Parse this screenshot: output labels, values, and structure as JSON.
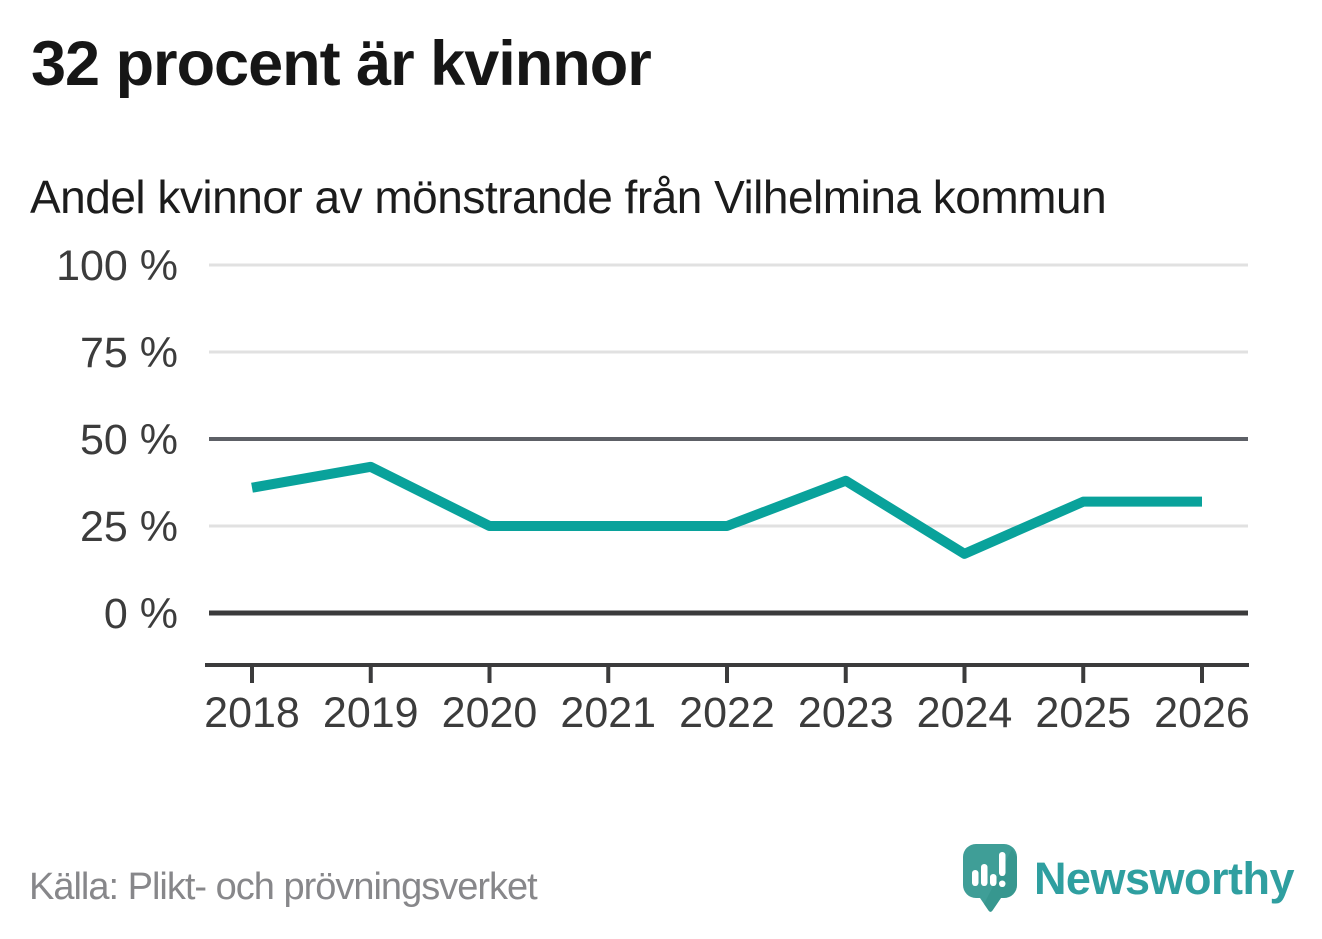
{
  "header": {
    "title": "32 procent är kvinnor",
    "subtitle": "Andel kvinnor av mönstrande från Vilhelmina kommun"
  },
  "footer": {
    "source": "Källa: Plikt- och prövningsverket",
    "brand": "Newsworthy"
  },
  "colors": {
    "line": "#09a29b",
    "grid_light": "#e1e1e1",
    "grid_mid": "#5d6066",
    "axis_dark": "#3b3b3c",
    "tick_label": "#3c3c3c",
    "logo_bubble": "#3f9e97",
    "logo_bubble_shade": "#2f8d86",
    "logo_glyph": "#ffffff",
    "brand_text": "#2f9fa0"
  },
  "chart_data": {
    "type": "line",
    "title": "32 procent är kvinnor",
    "subtitle": "Andel kvinnor av mönstrande från Vilhelmina kommun",
    "categories": [
      "2018",
      "2019",
      "2020",
      "2021",
      "2022",
      "2023",
      "2024",
      "2025",
      "2026"
    ],
    "series": [
      {
        "name": "Andel kvinnor av mönstrande",
        "values": [
          36,
          42,
          25,
          25,
          25,
          38,
          17,
          32,
          32
        ]
      }
    ],
    "unit": "%",
    "ylim": [
      0,
      100
    ],
    "yticks": [
      0,
      25,
      50,
      75,
      100
    ],
    "ytick_labels": [
      "0 %",
      "25 %",
      "50 %",
      "75 %",
      "100 %"
    ],
    "grid": true,
    "legend": "none",
    "source": "Källa: Plikt- och prövningsverket"
  }
}
